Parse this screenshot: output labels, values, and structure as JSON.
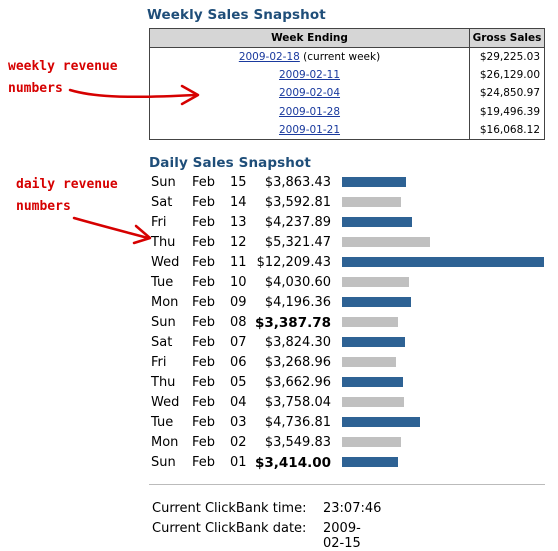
{
  "weekly": {
    "title": "Weekly Sales Snapshot",
    "headers": {
      "week": "Week Ending",
      "gross": "Gross Sales"
    },
    "rows": [
      {
        "date": "2009-02-18",
        "suffix": " (current week)",
        "gross": "$29,225.03"
      },
      {
        "date": "2009-02-11",
        "suffix": "",
        "gross": "$26,129.00"
      },
      {
        "date": "2009-02-04",
        "suffix": "",
        "gross": "$24,850.97"
      },
      {
        "date": "2009-01-28",
        "suffix": "",
        "gross": "$19,496.39"
      },
      {
        "date": "2009-01-21",
        "suffix": "",
        "gross": "$16,068.12"
      }
    ]
  },
  "daily": {
    "title": "Daily Sales Snapshot",
    "max_value": 12209.43,
    "rows": [
      {
        "day": "Sun",
        "month": "Feb",
        "date": "15",
        "amount": "$3,863.43",
        "value": 3863.43,
        "bold": false,
        "color": "blue"
      },
      {
        "day": "Sat",
        "month": "Feb",
        "date": "14",
        "amount": "$3,592.81",
        "value": 3592.81,
        "bold": false,
        "color": "gray"
      },
      {
        "day": "Fri",
        "month": "Feb",
        "date": "13",
        "amount": "$4,237.89",
        "value": 4237.89,
        "bold": false,
        "color": "blue"
      },
      {
        "day": "Thu",
        "month": "Feb",
        "date": "12",
        "amount": "$5,321.47",
        "value": 5321.47,
        "bold": false,
        "color": "gray"
      },
      {
        "day": "Wed",
        "month": "Feb",
        "date": "11",
        "amount": "$12,209.43",
        "value": 12209.43,
        "bold": false,
        "color": "blue"
      },
      {
        "day": "Tue",
        "month": "Feb",
        "date": "10",
        "amount": "$4,030.60",
        "value": 4030.6,
        "bold": false,
        "color": "gray"
      },
      {
        "day": "Mon",
        "month": "Feb",
        "date": "09",
        "amount": "$4,196.36",
        "value": 4196.36,
        "bold": false,
        "color": "blue"
      },
      {
        "day": "Sun",
        "month": "Feb",
        "date": "08",
        "amount": "$3,387.78",
        "value": 3387.78,
        "bold": true,
        "color": "gray"
      },
      {
        "day": "Sat",
        "month": "Feb",
        "date": "07",
        "amount": "$3,824.30",
        "value": 3824.3,
        "bold": false,
        "color": "blue"
      },
      {
        "day": "Fri",
        "month": "Feb",
        "date": "06",
        "amount": "$3,268.96",
        "value": 3268.96,
        "bold": false,
        "color": "gray"
      },
      {
        "day": "Thu",
        "month": "Feb",
        "date": "05",
        "amount": "$3,662.96",
        "value": 3662.96,
        "bold": false,
        "color": "blue"
      },
      {
        "day": "Wed",
        "month": "Feb",
        "date": "04",
        "amount": "$3,758.04",
        "value": 3758.04,
        "bold": false,
        "color": "gray"
      },
      {
        "day": "Tue",
        "month": "Feb",
        "date": "03",
        "amount": "$4,736.81",
        "value": 4736.81,
        "bold": false,
        "color": "blue"
      },
      {
        "day": "Mon",
        "month": "Feb",
        "date": "02",
        "amount": "$3,549.83",
        "value": 3549.83,
        "bold": false,
        "color": "gray"
      },
      {
        "day": "Sun",
        "month": "Feb",
        "date": "01",
        "amount": "$3,414.00",
        "value": 3414.0,
        "bold": true,
        "color": "blue"
      }
    ]
  },
  "footer": {
    "time_label": "Current ClickBank time:",
    "time_value": "23:07:46",
    "date_label": "Current ClickBank date:",
    "date_value": "2009-02-15"
  },
  "annotations": {
    "weekly_line1": "weekly revenue",
    "weekly_line2": "numbers",
    "daily_line1": "daily revenue",
    "daily_line2": "numbers"
  },
  "colors": {
    "blue": "#2e6294",
    "gray": "#c0c0c0",
    "title": "#1f4e79",
    "link": "#1a3a9e",
    "annotation": "#d60000"
  }
}
